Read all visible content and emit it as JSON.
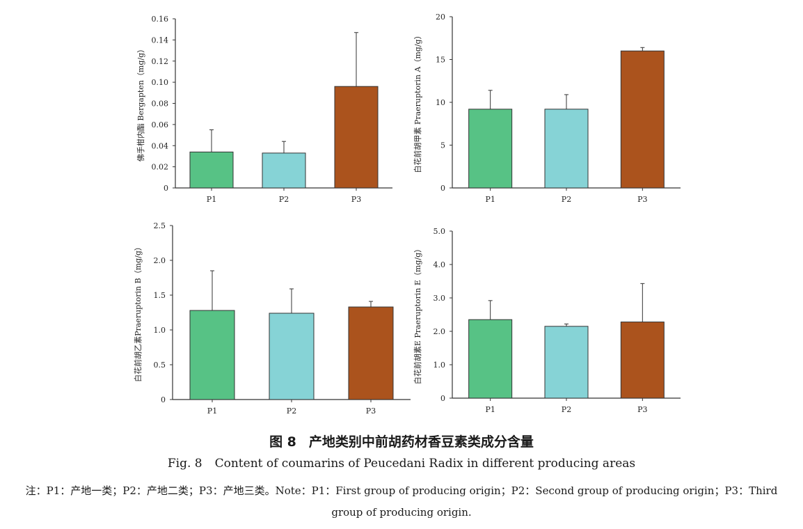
{
  "colors": {
    "P1": "#57c285",
    "P2": "#86d3d6",
    "P3": "#ab531d",
    "axis": "#333333",
    "bar_edge": "#333333"
  },
  "chart_data": [
    {
      "type": "bar",
      "categories": [
        "P1",
        "P2",
        "P3"
      ],
      "values": [
        0.034,
        0.033,
        0.096
      ],
      "errors": [
        0.021,
        0.011,
        0.051
      ],
      "ylabel": "佛手柑内酯 Bergapten（mg/g）",
      "ylim": [
        0,
        0.16
      ],
      "yticks": [
        0,
        0.02,
        0.04,
        0.06,
        0.08,
        0.1,
        0.12,
        0.14,
        0.16
      ],
      "ytick_labels": [
        "0",
        "0.02",
        "0.04",
        "0.06",
        "0.08",
        "0.10",
        "0.12",
        "0.14",
        "0.16"
      ],
      "grid": false
    },
    {
      "type": "bar",
      "categories": [
        "P1",
        "P2",
        "P3"
      ],
      "values": [
        9.2,
        9.2,
        16.0
      ],
      "errors": [
        2.2,
        1.7,
        0.4
      ],
      "ylabel": "白花前胡甲素 Praeruptorin A（mg/g）",
      "ylim": [
        0,
        20
      ],
      "yticks": [
        0,
        5,
        10,
        15,
        20
      ],
      "ytick_labels": [
        "0",
        "5",
        "10",
        "15",
        "20"
      ],
      "grid": false
    },
    {
      "type": "bar",
      "categories": [
        "P1",
        "P2",
        "P3"
      ],
      "values": [
        1.28,
        1.24,
        1.33
      ],
      "errors": [
        0.57,
        0.35,
        0.08
      ],
      "ylabel": "白花前胡乙素Praeruptorin B（mg/g）",
      "ylim": [
        0,
        2.5
      ],
      "yticks": [
        0,
        0.5,
        1.0,
        1.5,
        2.0,
        2.5
      ],
      "ytick_labels": [
        "0",
        "0.5",
        "1.0",
        "1.5",
        "2.0",
        "2.5"
      ],
      "grid": false
    },
    {
      "type": "bar",
      "categories": [
        "P1",
        "P2",
        "P3"
      ],
      "values": [
        2.35,
        2.15,
        2.28
      ],
      "errors": [
        0.57,
        0.07,
        1.15
      ],
      "ylabel": "白花前胡素E Praeruptorin E（mg/g）",
      "ylim": [
        0,
        5.0
      ],
      "yticks": [
        0,
        1.0,
        2.0,
        3.0,
        4.0,
        5.0
      ],
      "ytick_labels": [
        "0",
        "1.0",
        "2.0",
        "3.0",
        "4.0",
        "5.0"
      ],
      "grid": false
    }
  ],
  "caption": {
    "cn_number": "图 8",
    "cn_title": "产地类别中前胡药材香豆素类成分含量",
    "en_number": "Fig. 8",
    "en_title": "Content of coumarins of Peucedani Radix in different producing areas"
  },
  "note": "注：P1：产地一类；P2：产地二类；P3：产地三类。Note：P1：First group of producing origin；P2：Second group of producing origin；P3：Third group of producing origin."
}
